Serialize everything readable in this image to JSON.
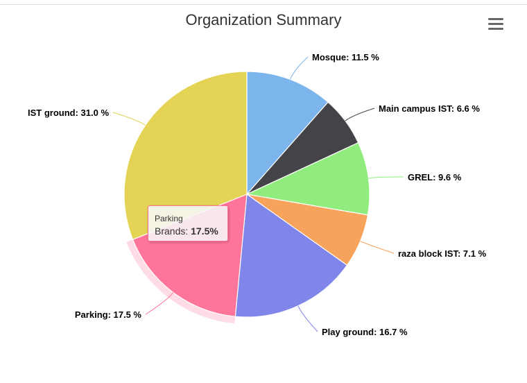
{
  "toolbar": {
    "menu_icon": "hamburger-menu-icon"
  },
  "chart_data": {
    "type": "pie",
    "title": "Organization Summary",
    "series": [
      {
        "name": "Brands",
        "unit": "%",
        "slices": [
          {
            "label": "Mosque",
            "value": 11.5,
            "color": "#7cb5ec"
          },
          {
            "label": "Main campus IST",
            "value": 6.6,
            "color": "#434348"
          },
          {
            "label": "GREL",
            "value": 9.6,
            "color": "#90ed7d"
          },
          {
            "label": "raza block IST",
            "value": 7.1,
            "color": "#f7a35c"
          },
          {
            "label": "Play ground",
            "value": 16.7,
            "color": "#8085e9"
          },
          {
            "label": "Parking",
            "value": 17.5,
            "color": "#ff7499",
            "hovered": true
          },
          {
            "label": "IST ground",
            "value": 31.0,
            "color": "#e4d354"
          }
        ]
      }
    ],
    "data_labels": [
      "Mosque: 11.5 %",
      "Main campus IST: 6.6 %",
      "GREL: 9.6 %",
      "raza block IST: 7.1 %",
      "Play ground: 16.7 %",
      "Parking: 17.5 %",
      "IST ground: 31.0 %"
    ]
  },
  "tooltip": {
    "title": "Parking",
    "series_label": "Brands: ",
    "value_text": "17.5%"
  }
}
